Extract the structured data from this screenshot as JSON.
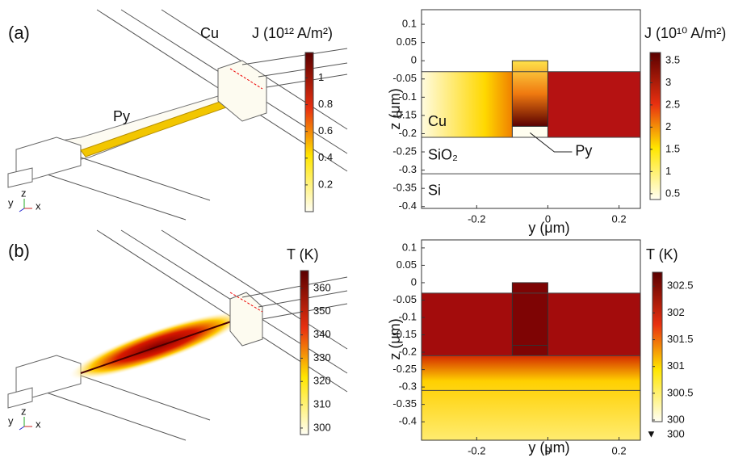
{
  "panels": [
    {
      "label": "(a)",
      "scene": {
        "labels": [
          "Cu",
          "Py"
        ],
        "triad": [
          "y",
          "z",
          "x"
        ]
      },
      "scene_colorbar": {
        "label": "J (10¹² A/m²)",
        "lim": [
          0,
          1.19
        ],
        "ticks": [
          0.2,
          0.4,
          0.6,
          0.8,
          1
        ]
      },
      "section": {
        "xlabel": "y (μm)",
        "ylabel": "z (μm)",
        "xlim": [
          -0.355,
          0.26
        ],
        "xticks": [
          -0.2,
          0,
          0.2
        ],
        "ylim": [
          -0.405,
          0.14
        ],
        "yticks": [
          0.1,
          0.05,
          0,
          -0.05,
          -0.1,
          -0.15,
          -0.2,
          -0.25,
          -0.3,
          -0.35,
          -0.4
        ],
        "regions": [
          "Cu",
          "SiO₂",
          "Si"
        ],
        "annotation": "Py"
      },
      "section_colorbar": {
        "label": "J (10¹⁰ A/m²)",
        "lim": [
          0.37,
          3.68
        ],
        "ticks": [
          0.5,
          1,
          1.5,
          2,
          2.5,
          3,
          3.5
        ]
      }
    },
    {
      "label": "(b)",
      "scene": {
        "triad": [
          "y",
          "z",
          "x"
        ]
      },
      "scene_colorbar": {
        "label": "T (K)",
        "lim": [
          297.2,
          367.6
        ],
        "ticks": [
          300,
          310,
          320,
          330,
          340,
          350,
          360
        ]
      },
      "section": {
        "xlabel": "y (μm)",
        "ylabel": "z (μm)",
        "xlim": [
          -0.355,
          0.26
        ],
        "xticks": [
          -0.2,
          0,
          0.2
        ],
        "ylim": [
          -0.453,
          0.123
        ],
        "yticks": [
          0.1,
          0.05,
          0,
          -0.05,
          -0.1,
          -0.15,
          -0.2,
          -0.25,
          -0.3,
          -0.35,
          -0.4
        ]
      },
      "section_colorbar": {
        "label": "T (K)",
        "lim": [
          299.97,
          302.76
        ],
        "ticks": [
          300,
          300.5,
          301,
          301.5,
          302,
          302.5
        ],
        "min_marker": 300
      }
    }
  ]
}
